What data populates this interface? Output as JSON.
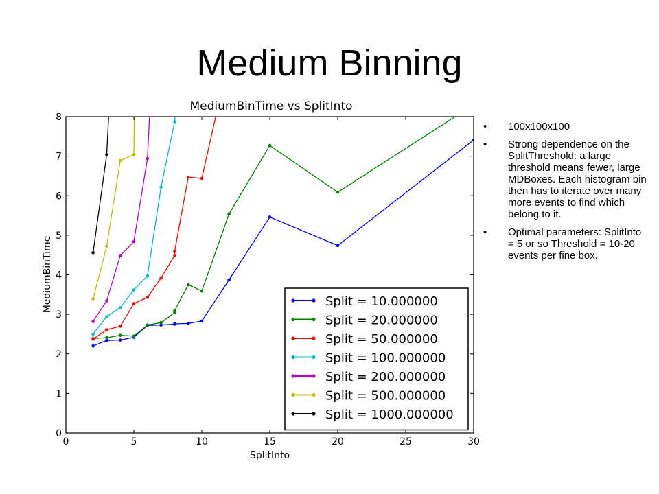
{
  "slide": {
    "title": "Medium Binning",
    "bullets": [
      "100x100x100",
      "Strong dependence on the SplitThreshold: a large threshold means fewer, large MDBoxes. Each histogram bin then has to iterate over many more events to find which belong to it.",
      "Optimal parameters: SplitInto = 5 or so Threshold = 10-20 events per fine box."
    ],
    "bullet_glyph": "•"
  },
  "chart_data": {
    "type": "line",
    "title": "MediumBinTime vs SplitInto",
    "xlabel": "SplitInto",
    "ylabel": "MediumBinTime",
    "xlim": [
      0,
      30
    ],
    "ylim": [
      0,
      8
    ],
    "xticks": [
      0,
      5,
      10,
      15,
      20,
      25,
      30
    ],
    "yticks": [
      0,
      1,
      2,
      3,
      4,
      5,
      6,
      7,
      8
    ],
    "grid": false,
    "legend_position": "lower-right",
    "series": [
      {
        "name": "Split = 10.000000",
        "color": "#0000ff",
        "x": [
          2,
          3,
          4,
          5,
          6,
          7,
          8,
          8,
          9,
          10,
          12,
          15,
          20,
          30
        ],
        "y": [
          2.2,
          2.34,
          2.35,
          2.42,
          2.72,
          2.73,
          2.75,
          2.76,
          2.77,
          2.83,
          3.87,
          5.46,
          4.74,
          7.41
        ]
      },
      {
        "name": "Split = 20.000000",
        "color": "#008000",
        "x": [
          2,
          3,
          4,
          5,
          6,
          7,
          8,
          8,
          9,
          10,
          12,
          15,
          20,
          30
        ],
        "y": [
          2.39,
          2.41,
          2.47,
          2.45,
          2.73,
          2.79,
          3.04,
          3.09,
          3.75,
          3.59,
          5.54,
          7.27,
          6.09,
          8.3
        ]
      },
      {
        "name": "Split = 50.000000",
        "color": "#ff0000",
        "x": [
          2,
          3,
          4,
          5,
          6,
          7,
          8,
          8,
          9,
          10,
          12
        ],
        "y": [
          2.37,
          2.61,
          2.7,
          3.27,
          3.43,
          3.92,
          4.49,
          4.59,
          6.47,
          6.44,
          9.5
        ]
      },
      {
        "name": "Split = 100.000000",
        "color": "#00bfbf",
        "x": [
          2,
          3,
          4,
          5,
          6,
          7,
          8,
          8.3
        ],
        "y": [
          2.5,
          2.94,
          3.17,
          3.62,
          3.97,
          6.22,
          7.87,
          9.0
        ]
      },
      {
        "name": "Split = 200.000000",
        "color": "#bf00bf",
        "x": [
          2,
          3,
          4,
          5,
          6,
          6.3
        ],
        "y": [
          2.82,
          3.34,
          4.49,
          4.84,
          6.94,
          9.0
        ]
      },
      {
        "name": "Split = 500.000000",
        "color": "#bfbf00",
        "x": [
          2,
          3,
          4,
          5,
          5.05
        ],
        "y": [
          3.39,
          4.72,
          6.89,
          7.04,
          8.5
        ]
      },
      {
        "name": "Split = 1000.000000",
        "color": "#000000",
        "x": [
          2,
          3,
          3.3
        ],
        "y": [
          4.56,
          7.04,
          9.0
        ]
      }
    ]
  }
}
